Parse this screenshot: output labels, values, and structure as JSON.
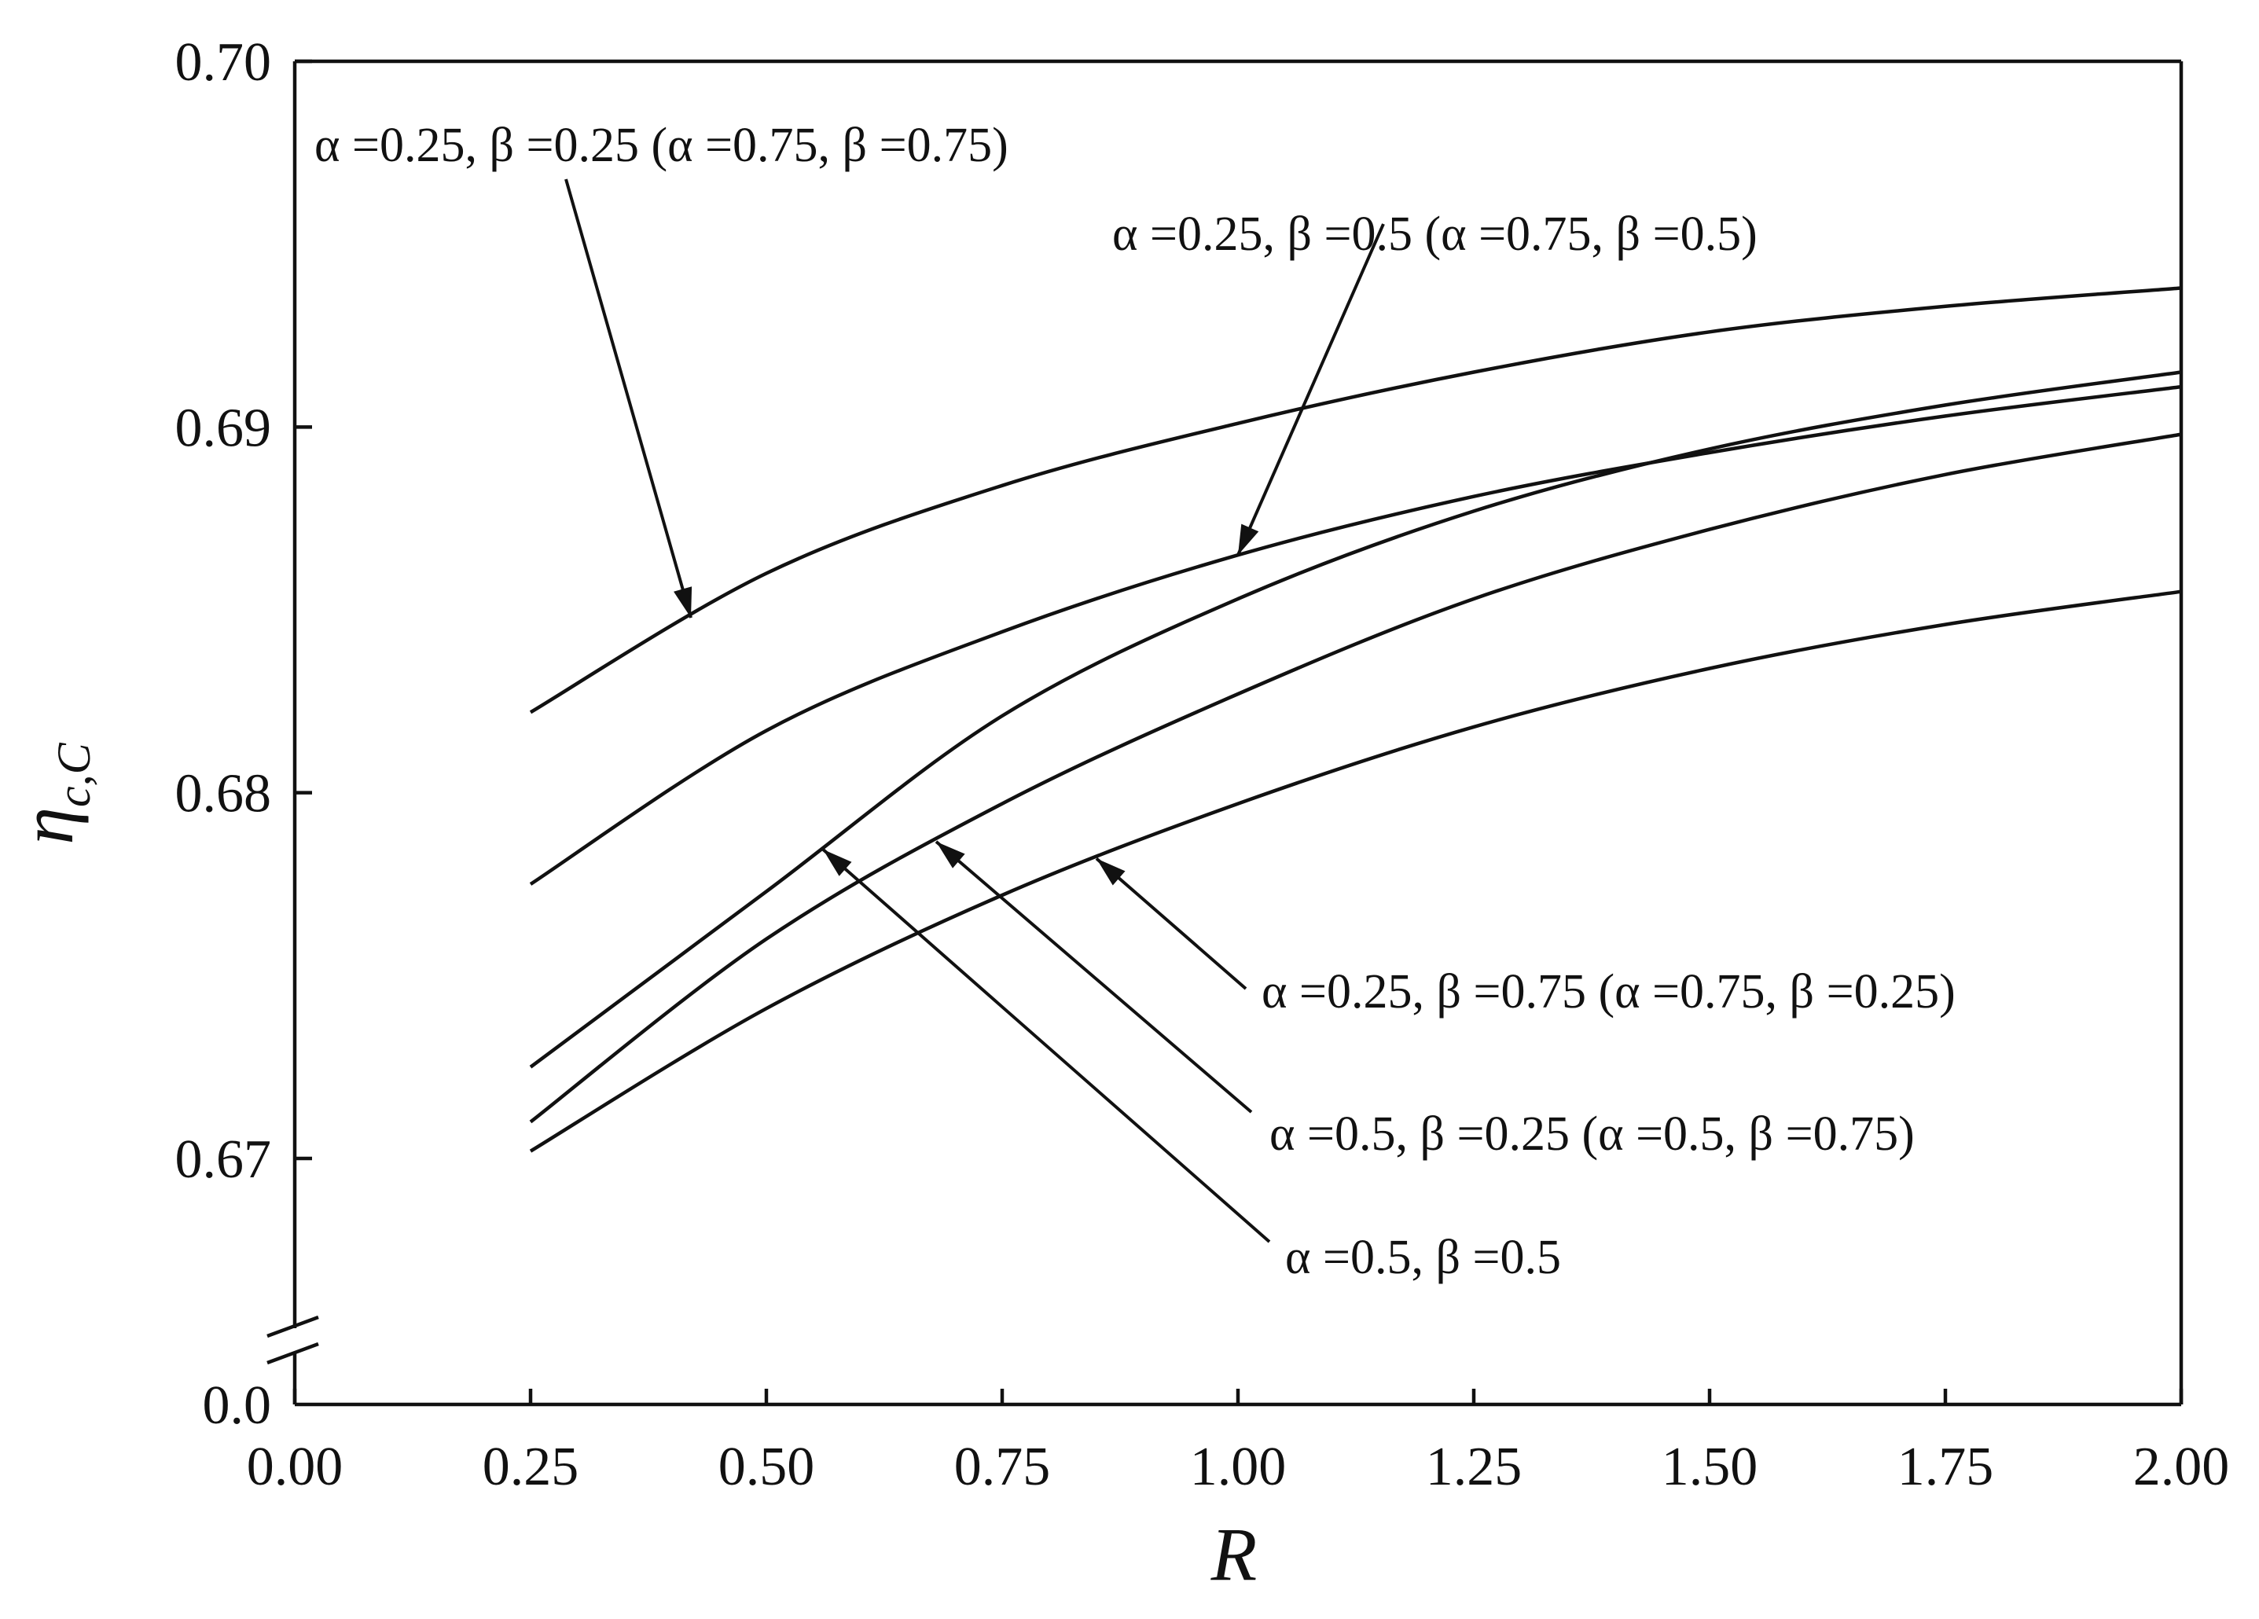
{
  "chart_data": {
    "type": "line",
    "xlabel": "R",
    "ylabel": "η",
    "ylabel_subscript": "c,C",
    "xlim": [
      0.0,
      2.0
    ],
    "ylim": [
      0.665,
      0.7
    ],
    "y_axis_break": true,
    "y_break_label": "0.0",
    "xticks": [
      "0.00",
      "0.25",
      "0.50",
      "0.75",
      "1.00",
      "1.25",
      "1.50",
      "1.75",
      "2.00"
    ],
    "yticks": [
      "0.67",
      "0.68",
      "0.69",
      "0.70"
    ],
    "grid": false,
    "x": [
      0.25,
      0.5,
      0.75,
      1.0,
      1.25,
      1.5,
      1.75,
      2.0
    ],
    "series": [
      {
        "values": [
          0.6822,
          0.686,
          0.6884,
          0.6901,
          0.6915,
          0.6926,
          0.6933,
          0.6938
        ]
      },
      {
        "values": [
          0.6775,
          0.6817,
          0.6844,
          0.6865,
          0.6881,
          0.6893,
          0.6903,
          0.6911
        ]
      },
      {
        "values": [
          0.6725,
          0.6773,
          0.6821,
          0.6853,
          0.6877,
          0.6894,
          0.6906,
          0.6915
        ]
      },
      {
        "values": [
          0.671,
          0.676,
          0.6797,
          0.6827,
          0.6853,
          0.6872,
          0.6887,
          0.6898
        ]
      },
      {
        "values": [
          0.6702,
          0.6741,
          0.6772,
          0.6797,
          0.6818,
          0.6834,
          0.6846,
          0.6855
        ]
      }
    ],
    "annotations": [
      {
        "text": "α =0.25, β =0.25 (α =0.75, β =0.75)",
        "series": 0,
        "point_x": 0.42
      },
      {
        "text": "α =0.25, β =0.5 (α =0.75, β =0.5)",
        "series": 1,
        "point_x": 1.0
      },
      {
        "text": "α =0.25, β =0.75 (α =0.75, β =0.25)",
        "series": 4,
        "point_x": 0.85
      },
      {
        "text": "α =0.5, β =0.25 (α =0.5, β =0.75)",
        "series": 3,
        "point_x": 0.68
      },
      {
        "text": "α =0.5, β =0.5",
        "series": 2,
        "point_x": 0.56
      }
    ]
  }
}
